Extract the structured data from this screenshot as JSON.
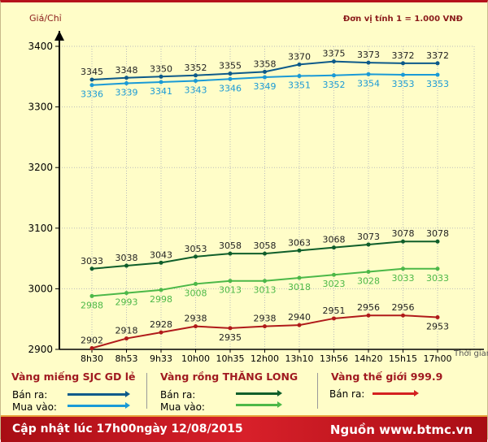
{
  "chart_data": {
    "type": "line",
    "ylabel": "Giá/Chỉ",
    "xlabel": "Thời gian",
    "unit_note": "Đơn vị tính 1 = 1.000 VNĐ",
    "ylim": [
      2900,
      3400
    ],
    "yticks": [
      2900,
      3000,
      3100,
      3200,
      3300,
      3400
    ],
    "grid": true,
    "categories": [
      "8h30",
      "8h53",
      "9h33",
      "10h00",
      "10h35",
      "12h00",
      "13h10",
      "13h56",
      "14h20",
      "15h15",
      "17h00"
    ],
    "series": [
      {
        "name": "Vàng miếng SJC GD lẻ - Bán ra",
        "color": "#0d5a8a",
        "labelPos": "above",
        "values": [
          3345,
          3348,
          3350,
          3352,
          3355,
          3358,
          3370,
          3375,
          3373,
          3372,
          3372
        ]
      },
      {
        "name": "Vàng miếng SJC GD lẻ - Mua vào",
        "color": "#1a9ad6",
        "labelPos": "below",
        "values": [
          3336,
          3339,
          3341,
          3343,
          3346,
          3349,
          3351,
          3352,
          3354,
          3353,
          3353
        ]
      },
      {
        "name": "Vàng rồng Thăng Long - Bán ra",
        "color": "#0f5e2a",
        "labelPos": "above",
        "values": [
          3033,
          3038,
          3043,
          3053,
          3058,
          3058,
          3063,
          3068,
          3073,
          3078,
          3078
        ]
      },
      {
        "name": "Vàng rồng Thăng Long - Mua vào",
        "color": "#4cb848",
        "labelPos": "below",
        "values": [
          2988,
          2993,
          2998,
          3008,
          3013,
          3013,
          3018,
          3023,
          3028,
          3033,
          3033
        ]
      },
      {
        "name": "Vàng thế giới 999.9 - Bán ra",
        "color": "#b01a1a",
        "labelPos": "mixed",
        "values": [
          2902,
          2918,
          2928,
          2938,
          2935,
          2938,
          2940,
          2951,
          2956,
          2956,
          2953
        ]
      }
    ]
  },
  "legend": {
    "groups": [
      {
        "title": "Vàng miếng SJC GD lẻ",
        "sell": "Bán ra:",
        "buy": "Mua vào:",
        "sell_color": "#0d5a8a",
        "buy_color": "#1a9ad6"
      },
      {
        "title": "Vàng rồng THĂNG LONG",
        "sell": "Bán ra:",
        "buy": "Mua vào:",
        "sell_color": "#0f5e2a",
        "buy_color": "#4cb848"
      },
      {
        "title": "Vàng thế giới 999.9",
        "sell": "Bán ra:",
        "sell_color": "#d42020"
      }
    ]
  },
  "footer": {
    "updated": "Cập nhật lúc 17h00ngày 12/08/2015",
    "source": "Nguồn www.btmc.vn"
  }
}
